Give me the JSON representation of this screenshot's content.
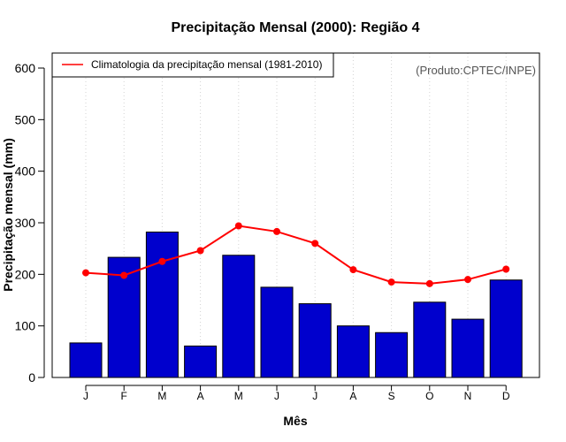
{
  "chart_data": {
    "type": "bar",
    "title": "Precipitação Mensal (2000): Região 4",
    "xlabel": "Mês",
    "ylabel": "Precipitação mensal (mm)",
    "ylim": [
      0,
      630
    ],
    "yticks": [
      0,
      100,
      200,
      300,
      400,
      500,
      600
    ],
    "categories": [
      "J",
      "F",
      "M",
      "A",
      "M",
      "J",
      "J",
      "A",
      "S",
      "O",
      "N",
      "D"
    ],
    "series": [
      {
        "name": "Precipitação mensal 2000",
        "type": "bar",
        "values": [
          67,
          233,
          282,
          61,
          237,
          175,
          143,
          100,
          87,
          146,
          113,
          189
        ]
      },
      {
        "name": "Climatologia da precipitação mensal (1981-2010)",
        "type": "line",
        "values": [
          203,
          198,
          225,
          246,
          294,
          283,
          260,
          209,
          185,
          182,
          190,
          210
        ]
      }
    ],
    "legend": {
      "position": "top-left",
      "entries": [
        "Climatologia da precipitação mensal (1981-2010)"
      ]
    },
    "annotation": "(Produto:CPTEC/INPE)",
    "grid": "vertical dotted",
    "colors": {
      "bar_fill": "#0000CD",
      "bar_edge": "#000000",
      "line": "#FF0000",
      "grid": "#D3D3D3",
      "annotation": "#555555"
    }
  }
}
